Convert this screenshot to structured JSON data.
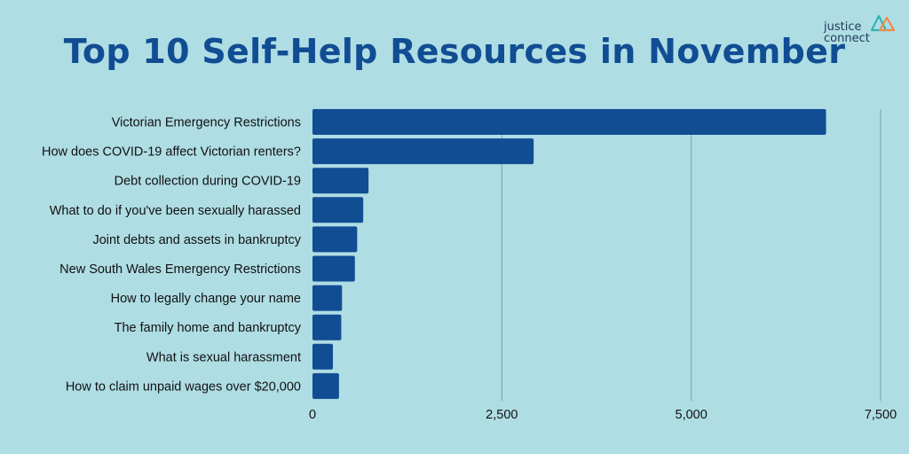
{
  "logo": {
    "line1": "justice",
    "line2": "connect"
  },
  "colors": {
    "bar": "#104d93",
    "background": "#afdde4",
    "grid": "#7aa3aa",
    "title": "#104d93"
  },
  "chart_data": {
    "type": "bar",
    "orientation": "horizontal",
    "title": "Top 10 Self-Help Resources in November",
    "categories": [
      "Victorian Emergency Restrictions",
      "How does COVID-19 affect Victorian renters?",
      "Debt collection during COVID-19",
      "What to do if you've been sexually harassed",
      "Joint debts and assets in bankruptcy",
      "New South Wales Emergency Restrictions",
      "How to legally change your name",
      "The family home and bankruptcy",
      "What is sexual harassment",
      "How to claim unpaid wages over $20,000"
    ],
    "values": [
      6780,
      2920,
      740,
      670,
      590,
      560,
      390,
      380,
      270,
      350
    ],
    "xlim": [
      0,
      7500
    ],
    "xticks": [
      0,
      2500,
      5000,
      7500
    ],
    "xtick_labels": [
      "0",
      "2,500",
      "5,000",
      "7,500"
    ],
    "grid": true,
    "legend": "none"
  }
}
